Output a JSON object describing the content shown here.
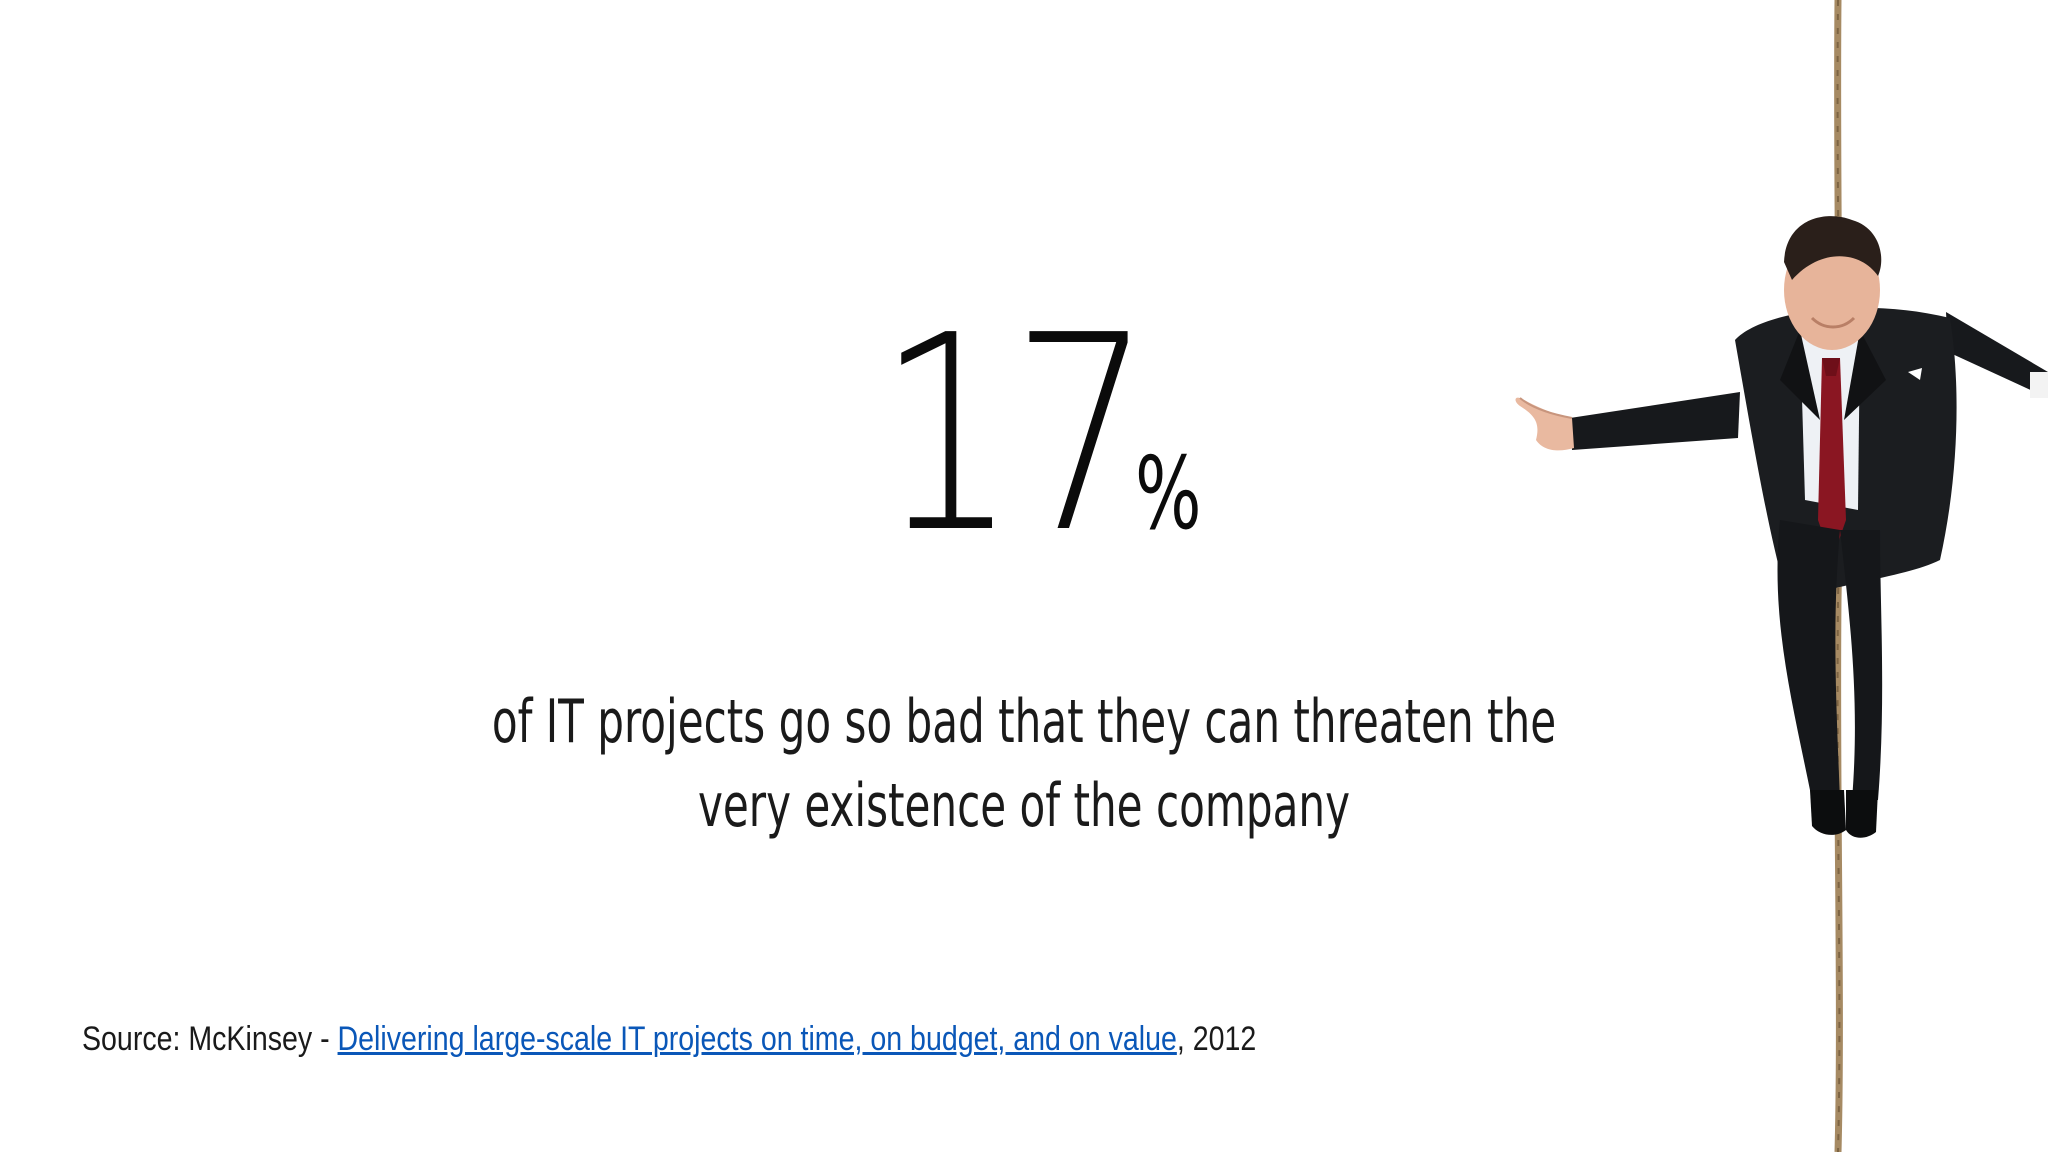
{
  "stat": {
    "value": "17",
    "unit": "%"
  },
  "statement": {
    "line1": "of IT projects go so bad that they can threaten the",
    "line2": "very existence of the company"
  },
  "source": {
    "prefix": "Source: McKinsey - ",
    "link_text": "Delivering large-scale IT projects on time, on budget, and on value",
    "suffix": ", 2012"
  },
  "colors": {
    "link": "#0a57b8",
    "text": "#1a1a1a",
    "tie": "#8a1622",
    "suit": "#16181b",
    "rope": "#a68a63"
  }
}
